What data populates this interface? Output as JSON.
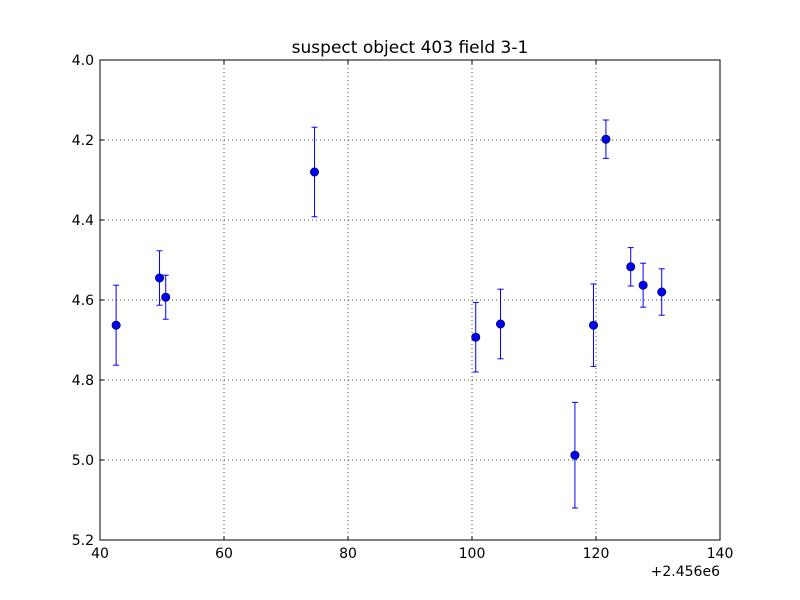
{
  "chart_data": {
    "type": "scatter",
    "title": "suspect object 403 field 3-1",
    "xlabel": "",
    "ylabel": "",
    "x_offset_label": "+2.456e6",
    "xlim": [
      40,
      140
    ],
    "ylim": [
      4.0,
      5.2
    ],
    "y_inverted": true,
    "grid": true,
    "grid_style": "dotted",
    "x_ticks": [
      "40",
      "60",
      "80",
      "100",
      "120",
      "140"
    ],
    "y_ticks": [
      "4.0",
      "4.2",
      "4.4",
      "4.6",
      "4.8",
      "5.0",
      "5.2"
    ],
    "marker_color": "#0000ff",
    "points": [
      {
        "x": 42.6,
        "y": 4.663,
        "err": 0.1
      },
      {
        "x": 49.6,
        "y": 4.545,
        "err": 0.068
      },
      {
        "x": 50.6,
        "y": 4.593,
        "err": 0.055
      },
      {
        "x": 74.6,
        "y": 4.28,
        "err": 0.112
      },
      {
        "x": 100.6,
        "y": 4.693,
        "err": 0.087
      },
      {
        "x": 104.6,
        "y": 4.66,
        "err": 0.087
      },
      {
        "x": 116.6,
        "y": 4.988,
        "err": 0.132
      },
      {
        "x": 119.6,
        "y": 4.663,
        "err": 0.103
      },
      {
        "x": 121.6,
        "y": 4.198,
        "err": 0.048
      },
      {
        "x": 125.6,
        "y": 4.517,
        "err": 0.048
      },
      {
        "x": 127.6,
        "y": 4.563,
        "err": 0.055
      },
      {
        "x": 130.6,
        "y": 4.58,
        "err": 0.058
      }
    ]
  }
}
